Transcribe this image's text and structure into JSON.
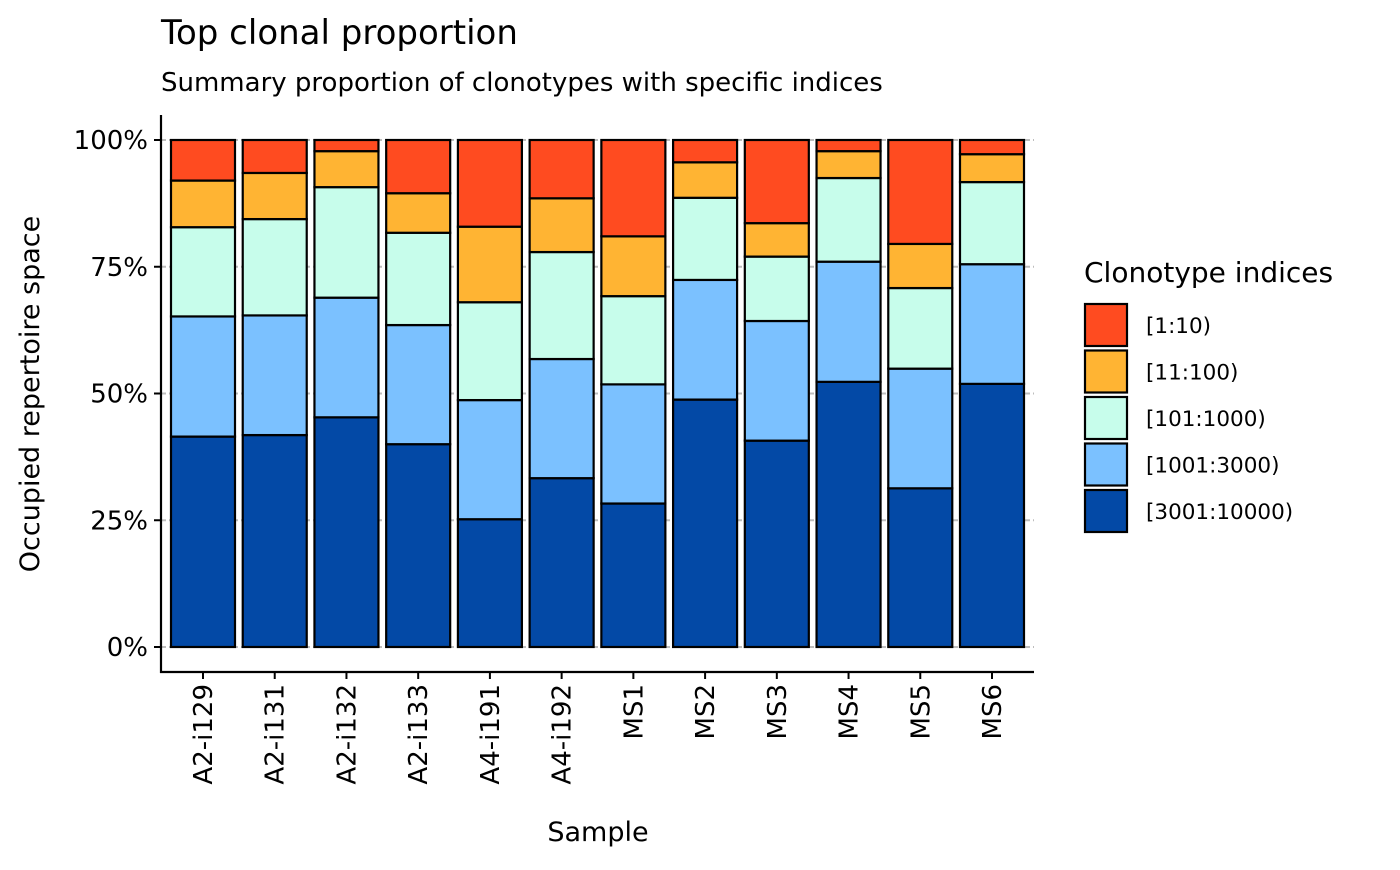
{
  "chart_data": {
    "type": "bar",
    "stacked": true,
    "title": "Top clonal proportion",
    "subtitle": "Summary proportion of clonotypes with specific indices",
    "xlabel": "Sample",
    "ylabel": "Occupied repertoire space",
    "ylim": [
      0,
      1
    ],
    "y_ticks": [
      0,
      0.25,
      0.5,
      0.75,
      1.0
    ],
    "y_tick_labels": [
      "0%",
      "25%",
      "50%",
      "75%",
      "100%"
    ],
    "grid": "horizontal major gridlines",
    "legend": {
      "title": "Clonotype indices",
      "position": "right"
    },
    "categories": [
      "A2-i129",
      "A2-i131",
      "A2-i132",
      "A2-i133",
      "A4-i191",
      "A4-i192",
      "MS1",
      "MS2",
      "MS3",
      "MS4",
      "MS5",
      "MS6"
    ],
    "series": [
      {
        "name": "[3001:10000)",
        "color": "#0349A6",
        "values": [
          0.415,
          0.418,
          0.453,
          0.4,
          0.252,
          0.333,
          0.283,
          0.488,
          0.407,
          0.523,
          0.313,
          0.519
        ]
      },
      {
        "name": "[1001:3000)",
        "color": "#7BC1FF",
        "values": [
          0.237,
          0.236,
          0.236,
          0.235,
          0.235,
          0.235,
          0.235,
          0.236,
          0.236,
          0.237,
          0.236,
          0.236
        ]
      },
      {
        "name": "[101:1000)",
        "color": "#C7FDEB",
        "values": [
          0.176,
          0.19,
          0.218,
          0.182,
          0.193,
          0.211,
          0.174,
          0.162,
          0.127,
          0.165,
          0.159,
          0.162
        ]
      },
      {
        "name": "[11:100)",
        "color": "#FFB433",
        "values": [
          0.092,
          0.091,
          0.071,
          0.078,
          0.149,
          0.106,
          0.118,
          0.07,
          0.066,
          0.053,
          0.087,
          0.055
        ]
      },
      {
        "name": "[1:10)",
        "color": "#FF4B20",
        "values": [
          0.08,
          0.065,
          0.022,
          0.105,
          0.171,
          0.115,
          0.19,
          0.044,
          0.164,
          0.022,
          0.205,
          0.028
        ]
      }
    ]
  }
}
